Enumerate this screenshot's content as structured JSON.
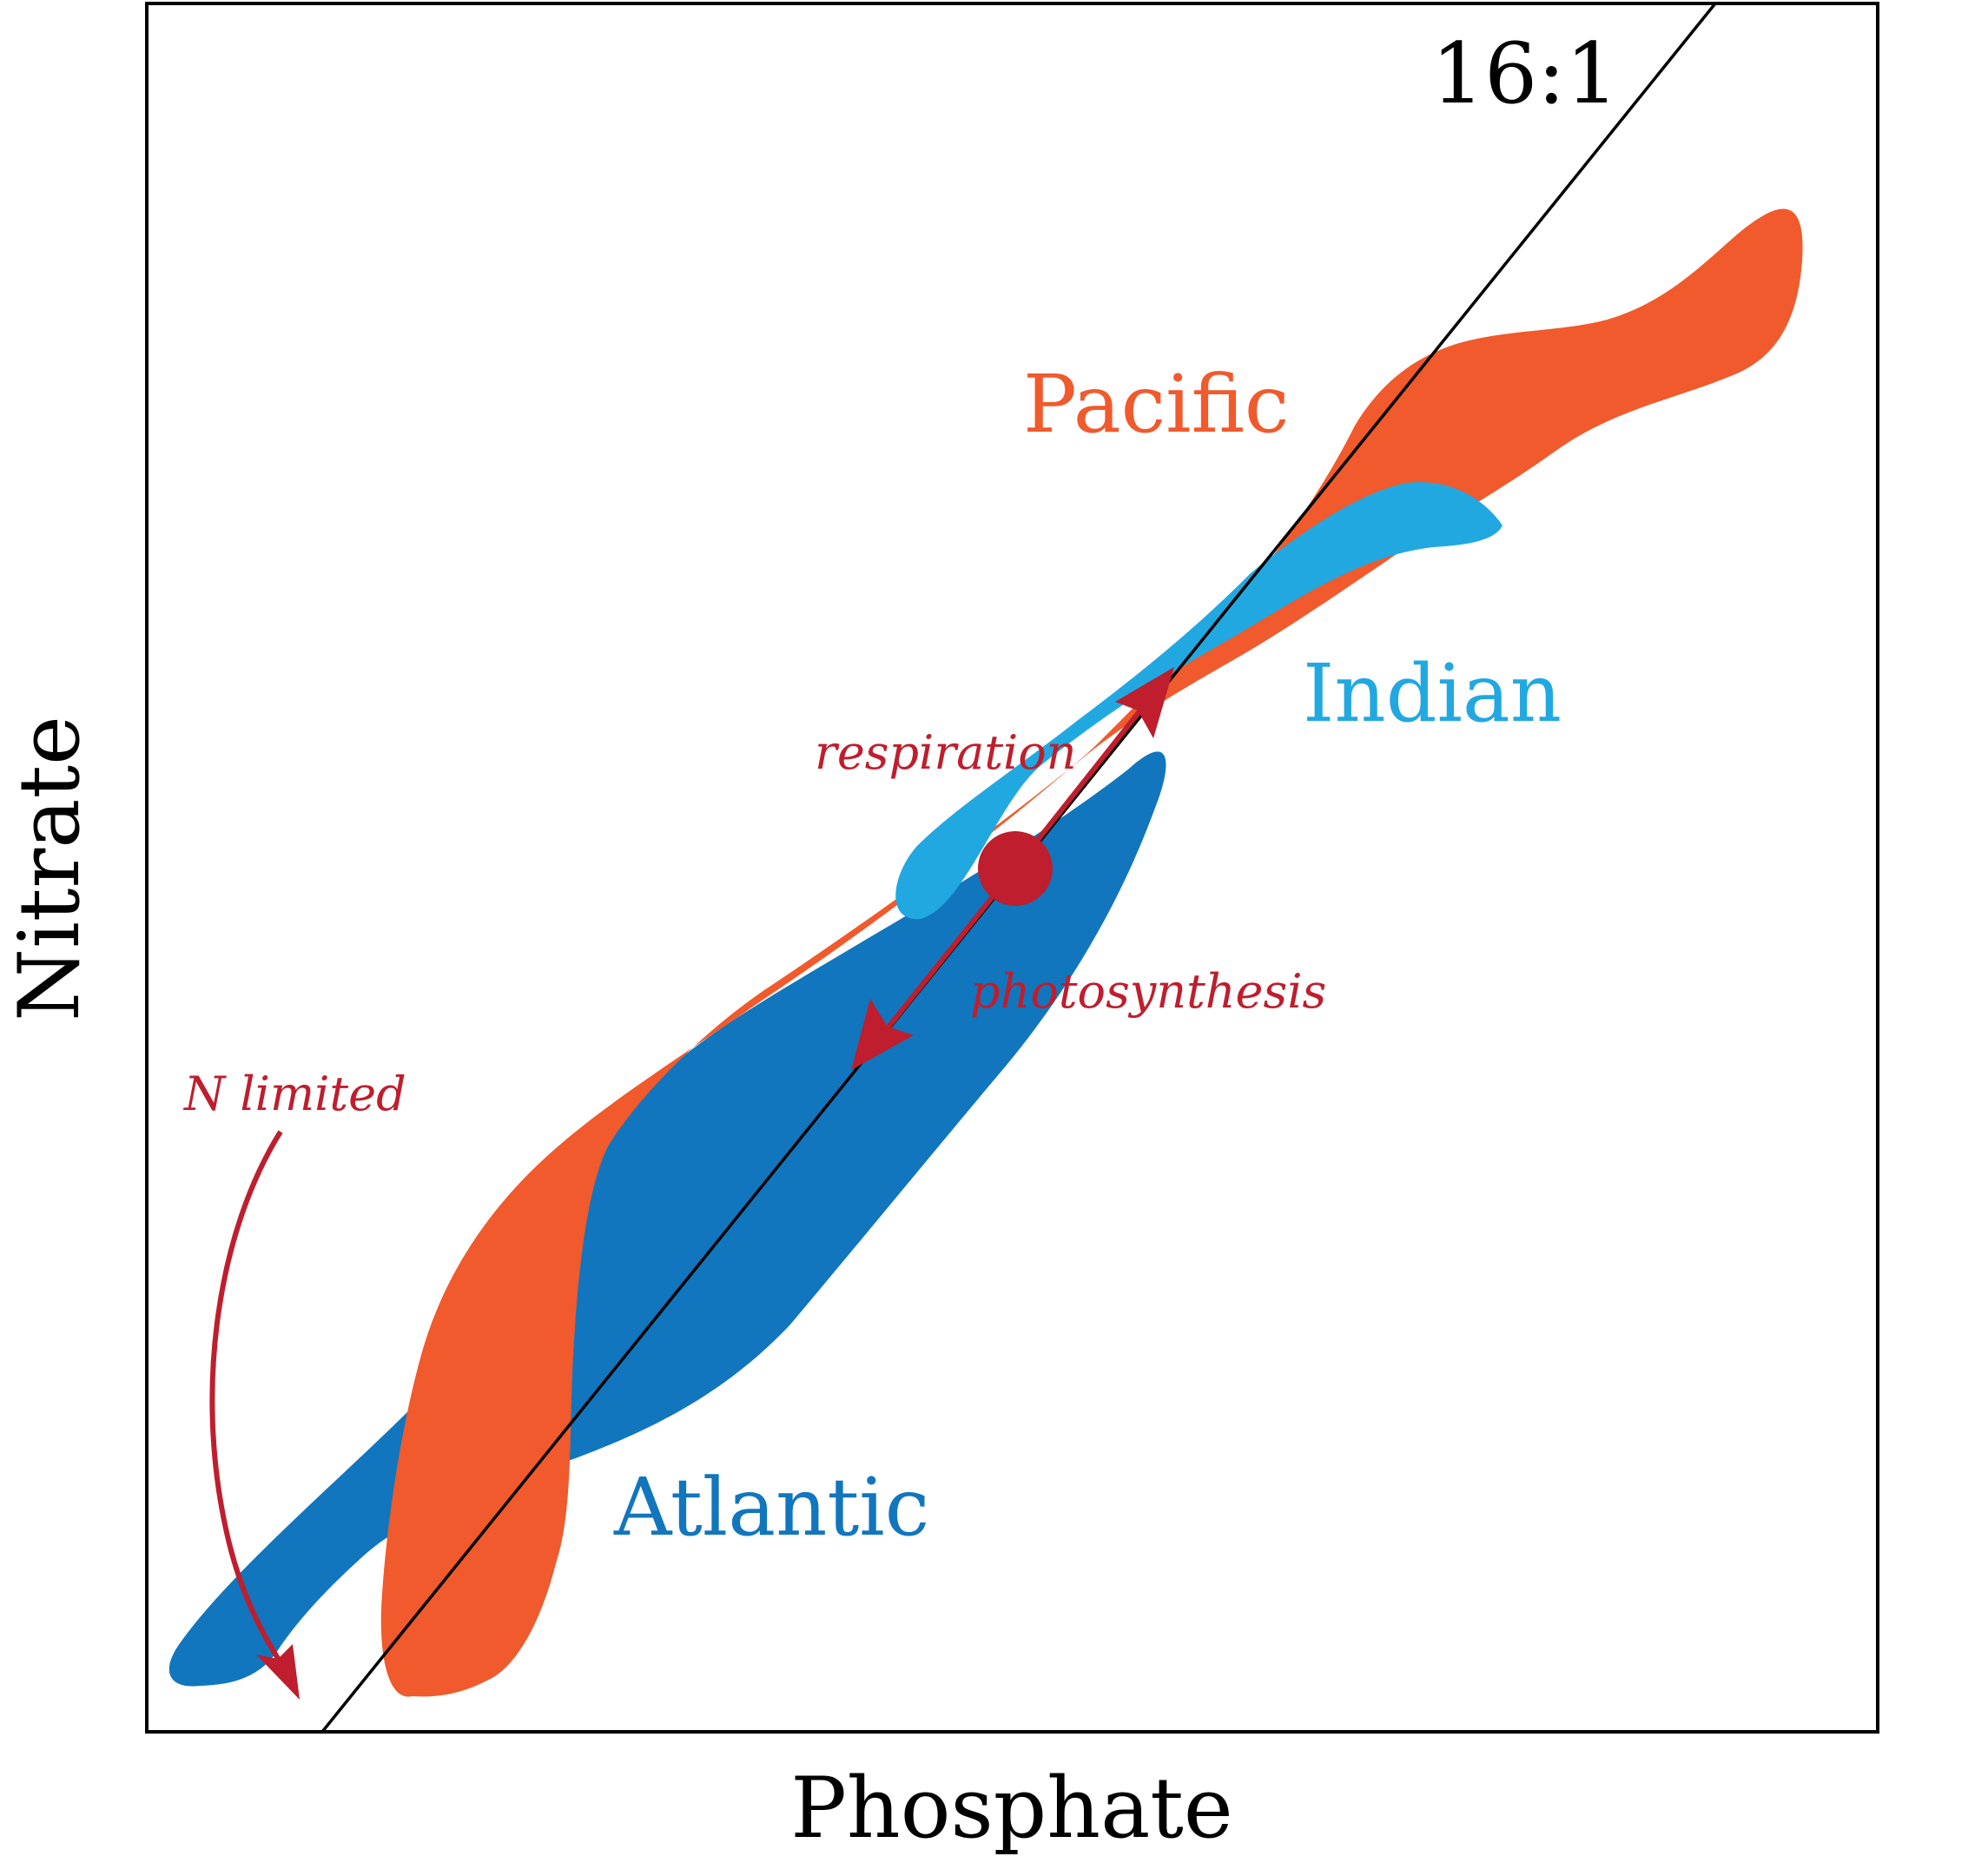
{
  "axes": {
    "x_label": "Phosphate",
    "y_label": "Nitrate"
  },
  "redfield": {
    "label": "16:1"
  },
  "oceans": {
    "pacific": {
      "label": "Pacific",
      "color": "#F05A2C"
    },
    "indian": {
      "label": "Indian",
      "color": "#22A8E0"
    },
    "atlantic": {
      "label": "Atlantic",
      "color": "#1176BD"
    }
  },
  "processes": {
    "color": "#BE1E2D",
    "respiration": "respiration",
    "photosynthesis": "photosynthesis",
    "n_limited": "N limited"
  }
}
